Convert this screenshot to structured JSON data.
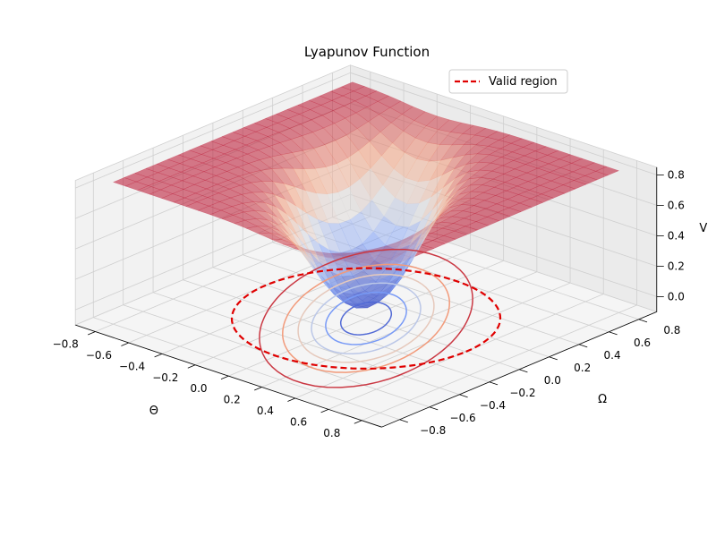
{
  "chart_data": {
    "type": "surface3d",
    "title": "Lyapunov Function",
    "xlabel": "Θ",
    "ylabel": "Ω",
    "zlabel": "V",
    "x_ticks": [
      "−0.8",
      "−0.6",
      "−0.4",
      "−0.2",
      "0.0",
      "0.2",
      "0.4",
      "0.6",
      "0.8"
    ],
    "y_ticks": [
      "−0.8",
      "−0.6",
      "−0.4",
      "−0.2",
      "0.0",
      "0.2",
      "0.4",
      "0.6",
      "0.8"
    ],
    "z_ticks": [
      "0.0",
      "0.2",
      "0.4",
      "0.6",
      "0.8"
    ],
    "x_range": [
      -0.8,
      0.8
    ],
    "y_range": [
      -0.8,
      0.8
    ],
    "z_range": [
      -0.1,
      0.85
    ],
    "colormap": "coolwarm",
    "grid": true,
    "surface": {
      "x": [
        -0.8,
        -0.6,
        -0.4,
        -0.2,
        0.0,
        0.2,
        0.4,
        0.6,
        0.8
      ],
      "y": [
        -0.8,
        -0.6,
        -0.4,
        -0.2,
        0.0,
        0.2,
        0.4,
        0.6,
        0.8
      ],
      "z_description_values": [
        0.0,
        0.85
      ]
    },
    "series": [
      {
        "name": "Valid region",
        "type": "dashed-circle",
        "color": "#e00000",
        "radius": 0.6,
        "z": -0.1
      }
    ],
    "legend": {
      "position": "top-right",
      "entries": [
        "Valid region"
      ]
    }
  }
}
